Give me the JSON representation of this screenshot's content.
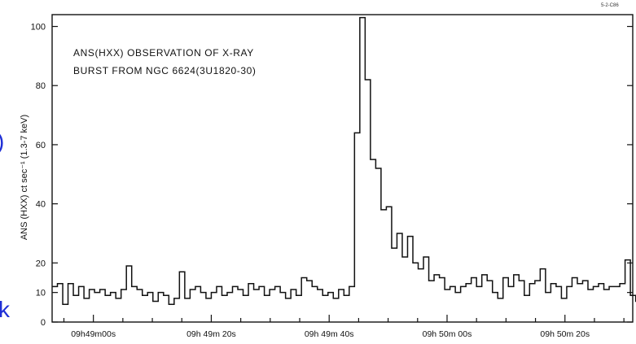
{
  "chart_data": {
    "type": "line",
    "style": "step histogram",
    "title": "",
    "annotation_lines": [
      "ANS(HXX) OBSERVATION OF X-RAY",
      "BURST FROM NGC 6624(3U1820-30)"
    ],
    "corner_code": "5-2-C86",
    "ylabel": "ANS (HXX) ct sec⁻¹ (1.3-7 keV)",
    "xlabel": "",
    "ylim": [
      0,
      104
    ],
    "yticks": [
      0,
      10,
      20,
      40,
      60,
      80,
      100
    ],
    "xtick_labels": [
      "09h49m00s",
      "09h 49m 20s",
      "09h 49m 40s",
      "09h 50m 00s",
      "09h 50m 20s"
    ],
    "xtick_seconds": [
      0,
      20,
      40,
      60,
      80
    ],
    "xlim_seconds": [
      -7,
      91.5
    ],
    "bin_width_seconds": 0.9,
    "series": [
      {
        "bin_start_seconds": -7,
        "values": [
          12,
          13,
          6,
          13,
          9,
          12,
          8,
          11,
          10,
          11,
          9,
          10,
          8,
          11,
          19,
          12,
          11,
          9,
          10,
          7,
          10,
          9,
          6,
          8,
          17,
          8,
          11,
          12,
          10,
          8,
          10,
          12,
          9,
          10,
          12,
          11,
          9,
          13,
          11,
          12,
          9,
          11,
          12,
          10,
          8,
          11,
          9,
          15,
          14,
          12,
          11,
          9,
          10,
          8,
          11,
          9,
          12,
          64,
          103,
          82,
          55,
          52,
          38,
          39,
          25,
          30,
          22,
          29,
          20,
          18,
          22,
          14,
          16,
          15,
          11,
          12,
          10,
          12,
          13,
          15,
          12,
          16,
          14,
          10,
          8,
          15,
          12,
          16,
          14,
          9,
          13,
          14,
          18,
          10,
          13,
          12,
          8,
          12,
          15,
          13,
          14,
          11,
          12,
          13,
          11,
          12,
          12,
          13,
          21,
          9,
          7,
          13,
          10,
          11,
          14,
          12,
          15,
          10,
          14
        ]
      }
    ]
  },
  "page_edge": {
    "left_glyph": ")",
    "bottom_glyph": "k"
  }
}
